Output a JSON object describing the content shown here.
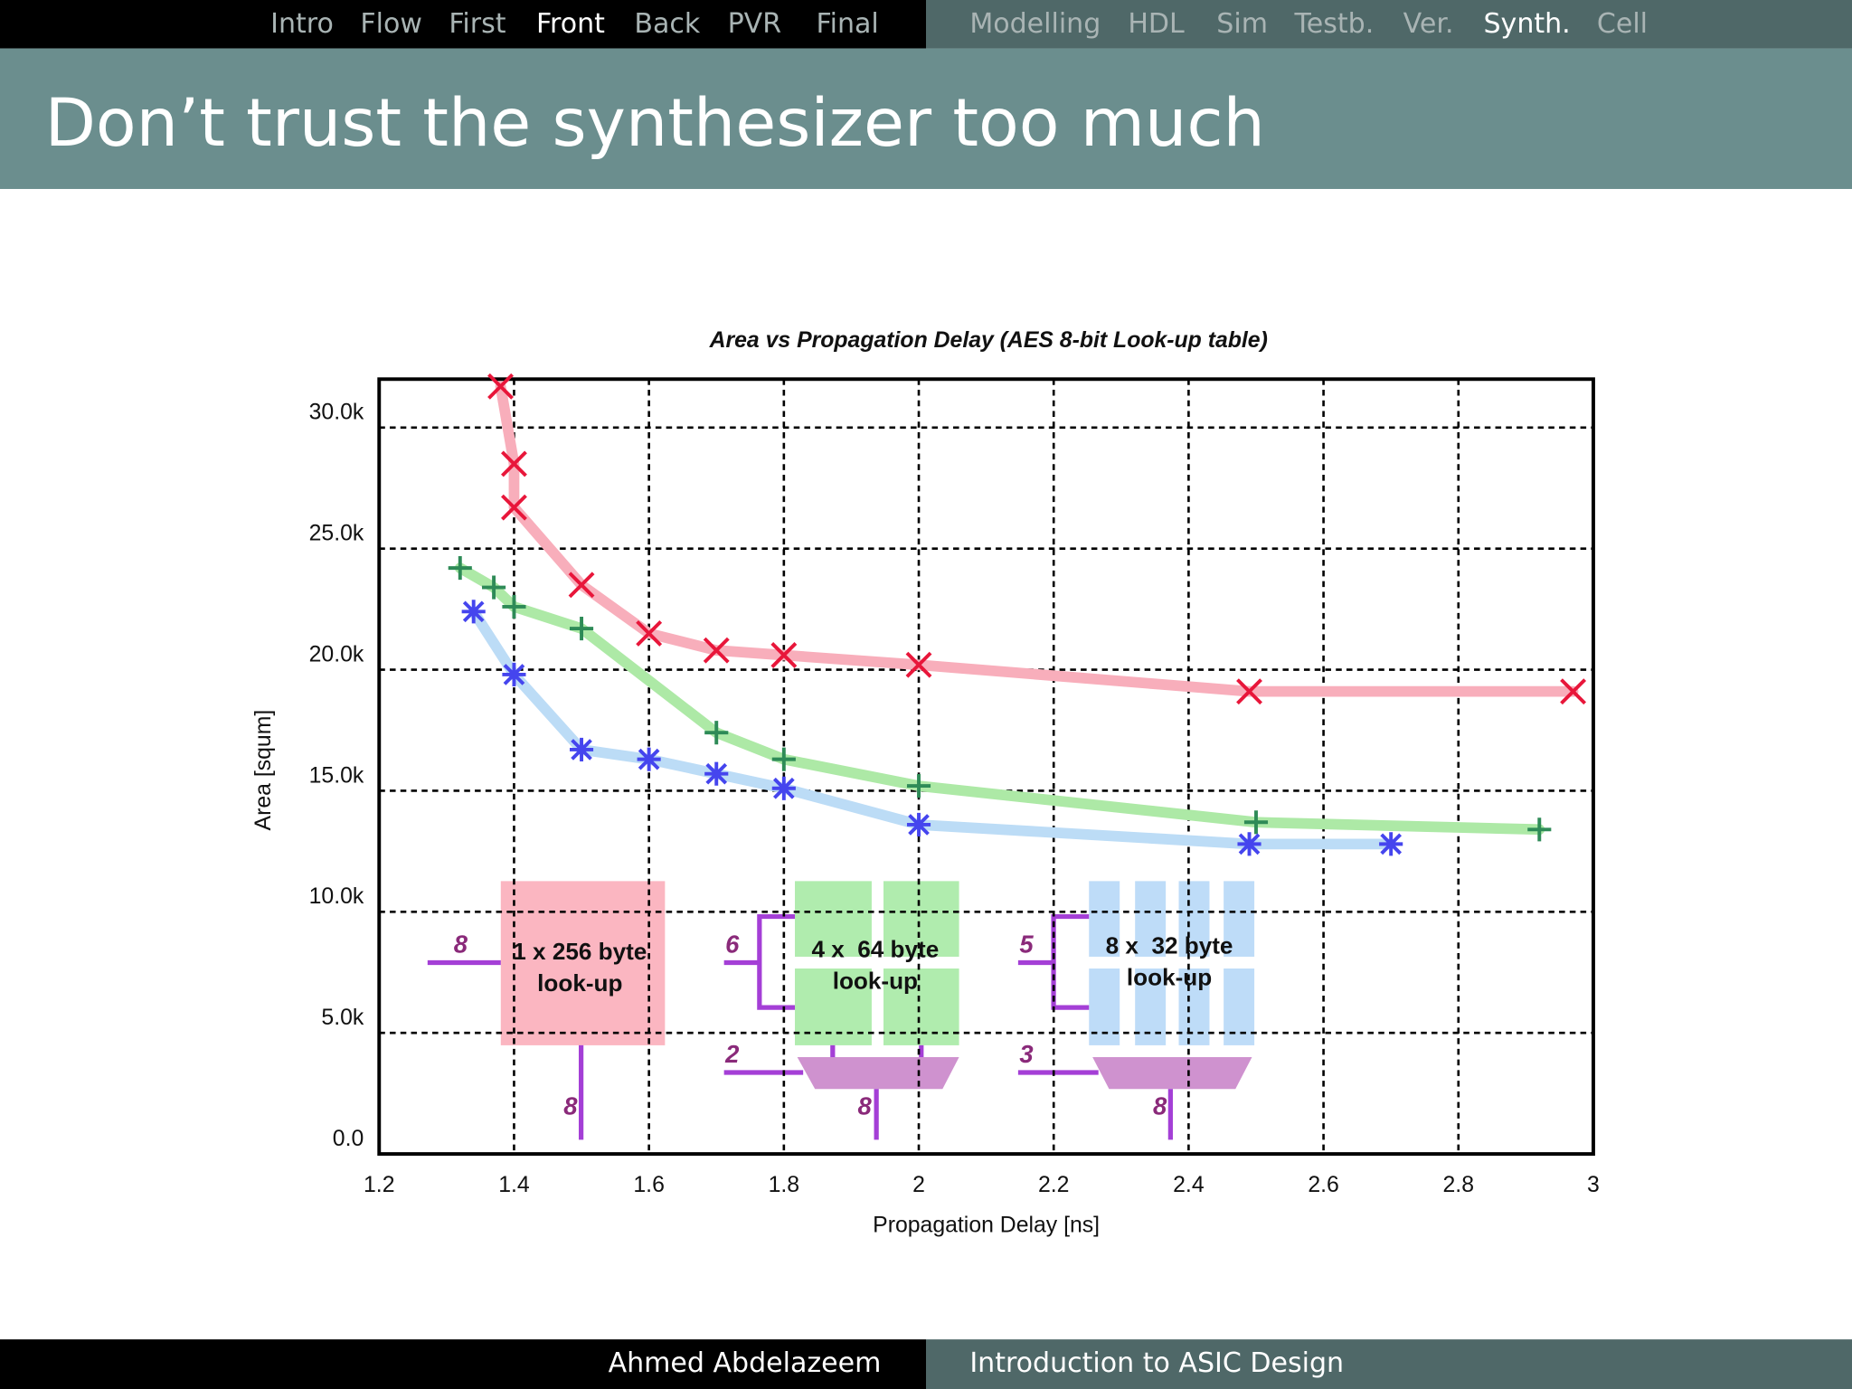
{
  "slide": {
    "nav_left": [
      "Intro",
      "Flow",
      "First",
      "Front",
      "Back",
      "PVR",
      "Final"
    ],
    "nav_right": [
      "Modelling",
      "HDL",
      "Sim",
      "Testb.",
      "Ver.",
      "Synth.",
      "Cell"
    ],
    "current": [
      "Front",
      "Synth."
    ],
    "title": "Don’t trust the synthesizer too much",
    "author": "Ahmed Abdelazeem",
    "course": "Introduction to ASIC Design"
  },
  "chart_data": {
    "type": "scatter",
    "title": "Area vs Propagation Delay (AES 8-bit Look-up table)",
    "x_label": "Propagation Delay [ns]",
    "y_label": "Area [squm]",
    "xlim": [
      1.2,
      3
    ],
    "ylim": [
      0,
      32000
    ],
    "xticks": [
      1.2,
      1.4,
      1.6,
      1.8,
      2,
      2.2,
      2.4,
      2.6,
      2.8,
      3
    ],
    "yticks": [
      {
        "value": 0,
        "label": "0.0"
      },
      {
        "value": 5000,
        "label": "5.0k"
      },
      {
        "value": 10000,
        "label": "10.0k"
      },
      {
        "value": 15000,
        "label": "15.0k"
      },
      {
        "value": 20000,
        "label": "20.0k"
      },
      {
        "value": 25000,
        "label": "25.0k"
      },
      {
        "value": 30000,
        "label": "30.0k"
      }
    ],
    "grid": true,
    "series": [
      {
        "marker": "x",
        "color": "#e8163a",
        "line_color": "#f8aebb",
        "x": [
          1.38,
          1.4,
          1.4,
          1.5,
          1.6,
          1.7,
          1.8,
          2.0,
          2.49,
          2.97
        ],
        "values": [
          31700,
          28500,
          26700,
          23500,
          21500,
          20800,
          20600,
          20200,
          19100,
          19100
        ]
      },
      {
        "marker": "+",
        "color": "#2e8b57",
        "line_color": "#ade9a6",
        "x": [
          1.32,
          1.37,
          1.4,
          1.5,
          1.7,
          1.8,
          2.0,
          2.5,
          2.92
        ],
        "values": [
          24200,
          23400,
          22600,
          21700,
          17400,
          16300,
          15200,
          13700,
          13400
        ]
      },
      {
        "marker": "*",
        "color": "#4545ee",
        "line_color": "#bcdcf6",
        "x": [
          1.34,
          1.4,
          1.5,
          1.6,
          1.7,
          1.8,
          2.0,
          2.49,
          2.7
        ],
        "values": [
          22400,
          19800,
          16700,
          16300,
          15700,
          15100,
          13600,
          12800,
          12800
        ]
      }
    ],
    "annotations": [
      "8",
      "1 x 256 byte",
      "look-up",
      "8",
      "6",
      "4 x  64 byte",
      "look-up",
      "2",
      "8",
      "5",
      "8 x  32 byte",
      "look-up",
      "3",
      "8"
    ]
  }
}
